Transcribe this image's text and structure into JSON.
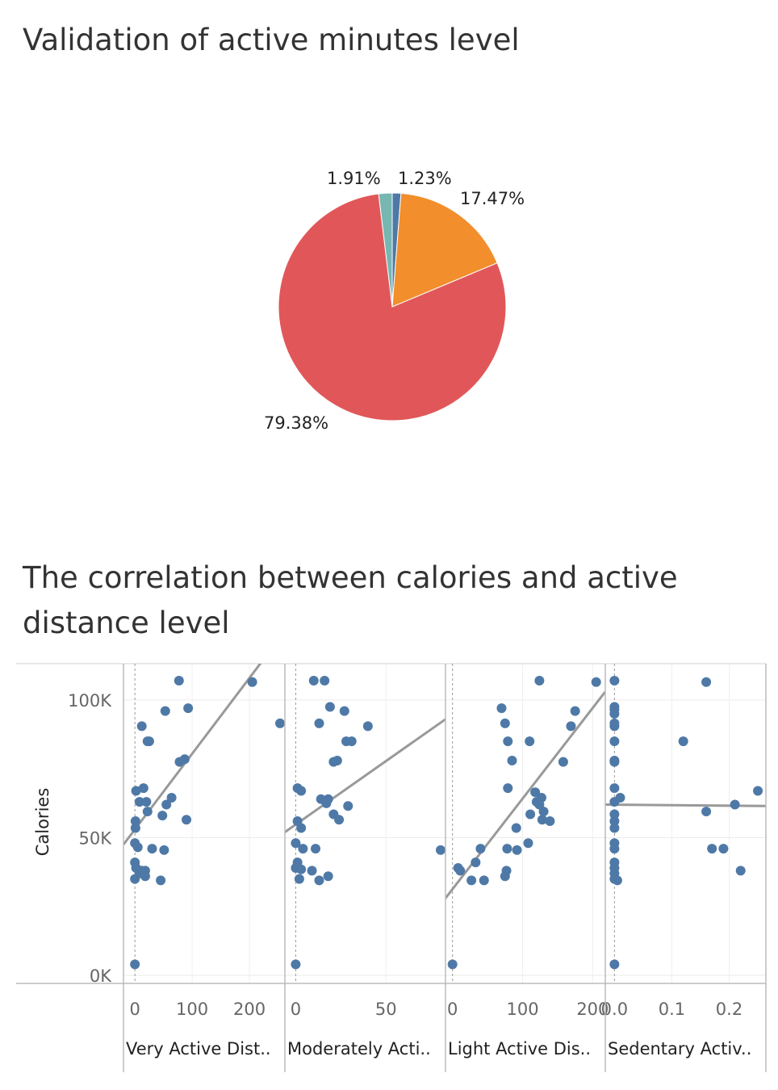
{
  "pie_title": "Validation of active minutes level",
  "scatter_title": "The correlation between calories and active distance level",
  "colors": {
    "slice_small_blue": "#4e79a7",
    "slice_orange": "#f28e2b",
    "slice_red": "#e15759",
    "slice_teal": "#76b7b2",
    "point": "#4e79a7",
    "trend": "#999999"
  },
  "chart_data": [
    {
      "type": "pie",
      "title": "Validation of active minutes level",
      "slices": [
        {
          "label": "1.23%",
          "value": 1.23,
          "color": "#4e79a7"
        },
        {
          "label": "17.47%",
          "value": 17.47,
          "color": "#f28e2b"
        },
        {
          "label": "79.38%",
          "value": 79.38,
          "color": "#e15759"
        },
        {
          "label": "1.91%",
          "value": 1.91,
          "color": "#76b7b2"
        }
      ]
    },
    {
      "type": "scatter",
      "title": "The correlation between calories and active distance level",
      "ylabel": "Calories",
      "ylim": [
        0,
        112000
      ],
      "yticks": [
        {
          "value": 0,
          "label": "0K"
        },
        {
          "value": 50000,
          "label": "50K"
        },
        {
          "value": 100000,
          "label": "100K"
        }
      ],
      "grid": true,
      "panels": [
        {
          "xlabel": "Very Active Dist..",
          "xlim": [
            -20,
            262
          ],
          "xticks": [
            {
              "value": 0,
              "label": "0"
            },
            {
              "value": 100,
              "label": "100"
            },
            {
              "value": 200,
              "label": "200"
            }
          ],
          "trend": [
            [
              -20,
              47500
            ],
            [
              262,
              125000
            ]
          ],
          "points": [
            [
              77,
              107000
            ],
            [
              205,
              106500
            ],
            [
              53,
              96000
            ],
            [
              93,
              97000
            ],
            [
              268,
              91500
            ],
            [
              12,
              90500
            ],
            [
              22,
              85000
            ],
            [
              25,
              85000
            ],
            [
              78,
              77500
            ],
            [
              87,
              78500
            ],
            [
              2,
              67000
            ],
            [
              15,
              68000
            ],
            [
              8,
              63000
            ],
            [
              20,
              63000
            ],
            [
              64,
              64500
            ],
            [
              55,
              62000
            ],
            [
              22,
              59500
            ],
            [
              48,
              58000
            ],
            [
              90,
              56500
            ],
            [
              1,
              56000
            ],
            [
              1,
              53500
            ],
            [
              0,
              48000
            ],
            [
              5,
              46500
            ],
            [
              30,
              46000
            ],
            [
              51,
              45500
            ],
            [
              0,
              41000
            ],
            [
              2,
              39000
            ],
            [
              12,
              38000
            ],
            [
              18,
              38000
            ],
            [
              8,
              37000
            ],
            [
              18,
              36000
            ],
            [
              0,
              35000
            ],
            [
              45,
              34500
            ],
            [
              0,
              4000
            ]
          ]
        },
        {
          "xlabel": "Moderately Acti..",
          "xlim": [
            -6,
            83
          ],
          "xticks": [
            {
              "value": 0,
              "label": "0"
            },
            {
              "value": 50,
              "label": "50"
            }
          ],
          "trend": [
            [
              -6,
              52000
            ],
            [
              83,
              93000
            ]
          ],
          "points": [
            [
              10,
              107000
            ],
            [
              16,
              107000
            ],
            [
              19,
              97500
            ],
            [
              27,
              96000
            ],
            [
              13,
              91500
            ],
            [
              40,
              90500
            ],
            [
              28,
              85000
            ],
            [
              31,
              85000
            ],
            [
              21,
              77500
            ],
            [
              23,
              78000
            ],
            [
              1,
              68000
            ],
            [
              3,
              67000
            ],
            [
              14,
              64000
            ],
            [
              18,
              64000
            ],
            [
              17,
              62500
            ],
            [
              29,
              61500
            ],
            [
              21,
              58500
            ],
            [
              24,
              56500
            ],
            [
              1,
              56000
            ],
            [
              3,
              53500
            ],
            [
              0,
              48000
            ],
            [
              4,
              46000
            ],
            [
              11,
              46000
            ],
            [
              84,
              45500
            ],
            [
              1,
              41000
            ],
            [
              0,
              39000
            ],
            [
              3,
              38500
            ],
            [
              9,
              38000
            ],
            [
              18,
              36000
            ],
            [
              2,
              35000
            ],
            [
              13,
              34500
            ],
            [
              0,
              4000
            ]
          ]
        },
        {
          "xlabel": "Light Active Dis..",
          "xlim": [
            -10,
            218
          ],
          "xticks": [
            {
              "value": 0,
              "label": "0"
            },
            {
              "value": 100,
              "label": "100"
            },
            {
              "value": 200,
              "label": "200"
            }
          ],
          "trend": [
            [
              -10,
              28000
            ],
            [
              218,
              103000
            ]
          ],
          "points": [
            [
              124,
              107000
            ],
            [
              205,
              106500
            ],
            [
              70,
              97000
            ],
            [
              175,
              96000
            ],
            [
              75,
              91500
            ],
            [
              169,
              90500
            ],
            [
              79,
              85000
            ],
            [
              110,
              85000
            ],
            [
              85,
              78000
            ],
            [
              158,
              77500
            ],
            [
              79,
              68000
            ],
            [
              118,
              66500
            ],
            [
              127,
              64500
            ],
            [
              120,
              63000
            ],
            [
              124,
              62000
            ],
            [
              130,
              59500
            ],
            [
              111,
              58500
            ],
            [
              128,
              56500
            ],
            [
              139,
              56000
            ],
            [
              91,
              53500
            ],
            [
              108,
              48000
            ],
            [
              78,
              46000
            ],
            [
              92,
              45500
            ],
            [
              40,
              46000
            ],
            [
              33,
              41000
            ],
            [
              8,
              39000
            ],
            [
              11,
              38000
            ],
            [
              77,
              38000
            ],
            [
              75,
              36000
            ],
            [
              27,
              34500
            ],
            [
              45,
              34500
            ],
            [
              0,
              4000
            ]
          ]
        },
        {
          "xlabel": "Sedentary Activ..",
          "xlim": [
            -0.016,
            0.264
          ],
          "xticks": [
            {
              "value": 0.0,
              "label": "0.0"
            },
            {
              "value": 0.1,
              "label": "0.1"
            },
            {
              "value": 0.2,
              "label": "0.2"
            }
          ],
          "trend": [
            [
              -0.016,
              62000
            ],
            [
              0.264,
              61500
            ]
          ],
          "points": [
            [
              0,
              107000
            ],
            [
              0.16,
              106500
            ],
            [
              0,
              97500
            ],
            [
              0,
              96500
            ],
            [
              0,
              95000
            ],
            [
              0,
              91500
            ],
            [
              0,
              90500
            ],
            [
              0.12,
              85000
            ],
            [
              0,
              85000
            ],
            [
              0,
              78000
            ],
            [
              0,
              77500
            ],
            [
              0,
              68000
            ],
            [
              0.25,
              67000
            ],
            [
              0.01,
              64500
            ],
            [
              0,
              63000
            ],
            [
              0.21,
              62000
            ],
            [
              0.16,
              59500
            ],
            [
              0,
              58500
            ],
            [
              0,
              56000
            ],
            [
              0,
              53500
            ],
            [
              0,
              48000
            ],
            [
              0,
              46000
            ],
            [
              0.17,
              46000
            ],
            [
              0.19,
              46000
            ],
            [
              0,
              41000
            ],
            [
              0,
              39000
            ],
            [
              0.22,
              38000
            ],
            [
              0,
              37000
            ],
            [
              0,
              35000
            ],
            [
              0.005,
              34500
            ],
            [
              0,
              4000
            ]
          ]
        }
      ]
    }
  ]
}
